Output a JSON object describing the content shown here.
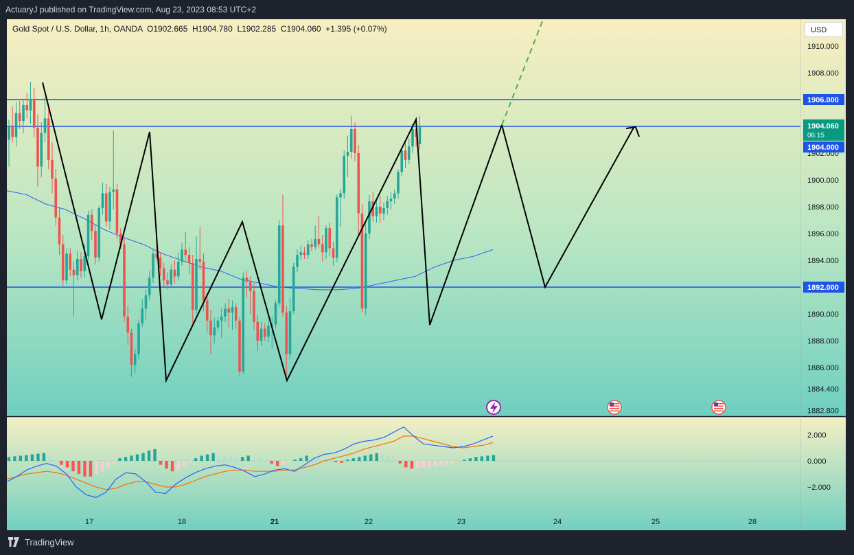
{
  "header": {
    "publisher_line": "ActuaryJ published on TradingView.com, Aug 23, 2023 08:53 UTC+2"
  },
  "legend": {
    "symbol": "Gold Spot / U.S. Dollar, 1h, OANDA",
    "ohlc": "O1902.665  H1904.780  L1902.285  C1904.060  +1.395 (+0.07%)"
  },
  "currency_button": "USD",
  "footer": {
    "brand": "TradingView"
  },
  "colors": {
    "up": "#26a69a",
    "down": "#ef5350",
    "level_line": "#1e53e5",
    "ma_line": "#2962ff",
    "signal_line": "#ff6d00",
    "projection_dashed": "#4caf50",
    "bg_top": "#f8eec0",
    "bg_bottom": "#6fcfc0"
  },
  "icons": {
    "event_flash": "lightning-icon",
    "us_flag_1": "us-flag-icon",
    "us_flag_2": "us-flag-icon"
  },
  "chart_data": {
    "type": "candlestick",
    "price_axis": {
      "ticks": [
        "1910.000",
        "1908.000",
        "1902.000",
        "1900.000",
        "1898.000",
        "1896.000",
        "1894.000",
        "1890.000",
        "1888.000",
        "1886.000",
        "1884.400",
        "1882.800"
      ],
      "tick_values": [
        1910,
        1908,
        1902,
        1900,
        1898,
        1896,
        1894,
        1890,
        1888,
        1886,
        1884.4,
        1882.8
      ]
    },
    "price_labels": [
      {
        "text": "1906.000",
        "value": 1906,
        "style": "level"
      },
      {
        "text": "1904.060",
        "value": 1904.06,
        "style": "last",
        "sub": "06:15"
      },
      {
        "text": "1904.000",
        "value": 1904,
        "style": "level"
      },
      {
        "text": "1892.000",
        "value": 1892,
        "style": "level"
      }
    ],
    "horizontal_levels": [
      1906,
      1904,
      1892
    ],
    "time_axis": {
      "labels": [
        "17",
        "18",
        "21",
        "22",
        "23",
        "24",
        "25",
        "28"
      ],
      "bold": [
        "21"
      ]
    },
    "candles": [
      {
        "o": 1903.0,
        "h": 1904.5,
        "l": 1901.0,
        "c": 1904.0
      },
      {
        "o": 1904.0,
        "h": 1905.5,
        "l": 1902.8,
        "c": 1903.2
      },
      {
        "o": 1903.2,
        "h": 1905.8,
        "l": 1902.5,
        "c": 1905.0
      },
      {
        "o": 1905.0,
        "h": 1905.9,
        "l": 1903.8,
        "c": 1904.4
      },
      {
        "o": 1904.4,
        "h": 1906.0,
        "l": 1903.5,
        "c": 1905.6
      },
      {
        "o": 1905.6,
        "h": 1906.5,
        "l": 1904.6,
        "c": 1905.2
      },
      {
        "o": 1905.2,
        "h": 1907.3,
        "l": 1904.2,
        "c": 1906.0
      },
      {
        "o": 1906.0,
        "h": 1906.9,
        "l": 1903.2,
        "c": 1903.9
      },
      {
        "o": 1903.9,
        "h": 1904.9,
        "l": 1899.5,
        "c": 1901.0
      },
      {
        "o": 1901.0,
        "h": 1904.3,
        "l": 1900.2,
        "c": 1903.5
      },
      {
        "o": 1903.5,
        "h": 1906.2,
        "l": 1902.8,
        "c": 1904.6
      },
      {
        "o": 1904.6,
        "h": 1905.5,
        "l": 1900.8,
        "c": 1901.5
      },
      {
        "o": 1901.5,
        "h": 1902.8,
        "l": 1899.0,
        "c": 1900.1
      },
      {
        "o": 1900.1,
        "h": 1900.8,
        "l": 1896.6,
        "c": 1897.2
      },
      {
        "o": 1897.2,
        "h": 1897.9,
        "l": 1894.4,
        "c": 1895.2
      },
      {
        "o": 1895.2,
        "h": 1895.9,
        "l": 1892.1,
        "c": 1892.5
      },
      {
        "o": 1892.5,
        "h": 1894.9,
        "l": 1892.2,
        "c": 1894.5
      },
      {
        "o": 1894.5,
        "h": 1894.9,
        "l": 1892.8,
        "c": 1893.3
      },
      {
        "o": 1893.3,
        "h": 1893.9,
        "l": 1889.8,
        "c": 1892.9
      },
      {
        "o": 1892.9,
        "h": 1894.7,
        "l": 1892.5,
        "c": 1894.1
      },
      {
        "o": 1894.1,
        "h": 1894.6,
        "l": 1892.7,
        "c": 1893.2
      },
      {
        "o": 1893.2,
        "h": 1895.2,
        "l": 1892.7,
        "c": 1894.3
      },
      {
        "o": 1894.3,
        "h": 1897.7,
        "l": 1894.0,
        "c": 1897.4
      },
      {
        "o": 1897.4,
        "h": 1897.8,
        "l": 1895.5,
        "c": 1896.2
      },
      {
        "o": 1896.2,
        "h": 1896.7,
        "l": 1893.7,
        "c": 1894.2
      },
      {
        "o": 1894.2,
        "h": 1898.1,
        "l": 1893.9,
        "c": 1897.9
      },
      {
        "o": 1897.9,
        "h": 1899.8,
        "l": 1897.4,
        "c": 1899.0
      },
      {
        "o": 1899.0,
        "h": 1899.7,
        "l": 1896.5,
        "c": 1896.9
      },
      {
        "o": 1896.9,
        "h": 1899.5,
        "l": 1896.3,
        "c": 1899.1
      },
      {
        "o": 1899.1,
        "h": 1903.7,
        "l": 1897.8,
        "c": 1899.3
      },
      {
        "o": 1899.3,
        "h": 1899.7,
        "l": 1895.6,
        "c": 1896.0
      },
      {
        "o": 1896.0,
        "h": 1896.4,
        "l": 1894.8,
        "c": 1895.2
      },
      {
        "o": 1895.2,
        "h": 1895.7,
        "l": 1889.4,
        "c": 1889.8
      },
      {
        "o": 1889.8,
        "h": 1890.6,
        "l": 1887.7,
        "c": 1888.6
      },
      {
        "o": 1888.6,
        "h": 1888.9,
        "l": 1885.3,
        "c": 1886.2
      },
      {
        "o": 1886.2,
        "h": 1887.4,
        "l": 1885.6,
        "c": 1887.0
      },
      {
        "o": 1887.0,
        "h": 1889.6,
        "l": 1886.6,
        "c": 1889.3
      },
      {
        "o": 1889.3,
        "h": 1891.1,
        "l": 1889.0,
        "c": 1890.4
      },
      {
        "o": 1890.4,
        "h": 1891.8,
        "l": 1889.6,
        "c": 1891.4
      },
      {
        "o": 1891.4,
        "h": 1893.2,
        "l": 1891.0,
        "c": 1892.7
      },
      {
        "o": 1892.7,
        "h": 1894.8,
        "l": 1892.3,
        "c": 1894.5
      },
      {
        "o": 1894.5,
        "h": 1895.9,
        "l": 1894.0,
        "c": 1894.2
      },
      {
        "o": 1894.2,
        "h": 1894.6,
        "l": 1892.8,
        "c": 1893.4
      },
      {
        "o": 1893.4,
        "h": 1893.8,
        "l": 1892.0,
        "c": 1892.5
      },
      {
        "o": 1892.5,
        "h": 1893.1,
        "l": 1891.8,
        "c": 1892.2
      },
      {
        "o": 1892.2,
        "h": 1893.7,
        "l": 1891.9,
        "c": 1893.3
      },
      {
        "o": 1893.3,
        "h": 1894.0,
        "l": 1892.3,
        "c": 1892.8
      },
      {
        "o": 1892.8,
        "h": 1894.6,
        "l": 1892.5,
        "c": 1893.9
      },
      {
        "o": 1893.9,
        "h": 1895.3,
        "l": 1893.6,
        "c": 1894.8
      },
      {
        "o": 1894.8,
        "h": 1896.1,
        "l": 1894.0,
        "c": 1894.4
      },
      {
        "o": 1894.4,
        "h": 1895.0,
        "l": 1893.0,
        "c": 1893.8
      },
      {
        "o": 1893.8,
        "h": 1894.4,
        "l": 1889.3,
        "c": 1890.3
      },
      {
        "o": 1890.3,
        "h": 1895.8,
        "l": 1890.0,
        "c": 1894.1
      },
      {
        "o": 1894.1,
        "h": 1896.5,
        "l": 1893.3,
        "c": 1893.9
      },
      {
        "o": 1893.9,
        "h": 1894.5,
        "l": 1890.2,
        "c": 1891.0
      },
      {
        "o": 1891.0,
        "h": 1891.6,
        "l": 1888.6,
        "c": 1889.5
      },
      {
        "o": 1889.5,
        "h": 1890.3,
        "l": 1887.0,
        "c": 1888.4
      },
      {
        "o": 1888.4,
        "h": 1889.7,
        "l": 1887.8,
        "c": 1889.0
      },
      {
        "o": 1889.0,
        "h": 1889.8,
        "l": 1888.7,
        "c": 1889.5
      },
      {
        "o": 1889.5,
        "h": 1890.4,
        "l": 1888.2,
        "c": 1889.8
      },
      {
        "o": 1889.8,
        "h": 1890.8,
        "l": 1889.4,
        "c": 1890.4
      },
      {
        "o": 1890.4,
        "h": 1891.1,
        "l": 1889.0,
        "c": 1890.1
      },
      {
        "o": 1890.1,
        "h": 1891.0,
        "l": 1888.8,
        "c": 1890.5
      },
      {
        "o": 1890.5,
        "h": 1890.8,
        "l": 1888.9,
        "c": 1889.5
      },
      {
        "o": 1889.5,
        "h": 1889.8,
        "l": 1885.3,
        "c": 1885.7
      },
      {
        "o": 1885.7,
        "h": 1893.1,
        "l": 1885.5,
        "c": 1892.7
      },
      {
        "o": 1892.7,
        "h": 1893.2,
        "l": 1891.2,
        "c": 1892.4
      },
      {
        "o": 1892.4,
        "h": 1892.8,
        "l": 1890.0,
        "c": 1891.7
      },
      {
        "o": 1891.7,
        "h": 1892.3,
        "l": 1888.8,
        "c": 1889.4
      },
      {
        "o": 1889.4,
        "h": 1889.9,
        "l": 1887.2,
        "c": 1888.0
      },
      {
        "o": 1888.0,
        "h": 1889.4,
        "l": 1887.6,
        "c": 1888.9
      },
      {
        "o": 1888.9,
        "h": 1889.3,
        "l": 1888.0,
        "c": 1888.3
      },
      {
        "o": 1888.3,
        "h": 1889.6,
        "l": 1887.9,
        "c": 1889.1
      },
      {
        "o": 1889.1,
        "h": 1889.8,
        "l": 1887.4,
        "c": 1889.2
      },
      {
        "o": 1889.2,
        "h": 1891.0,
        "l": 1888.9,
        "c": 1890.8
      },
      {
        "o": 1890.8,
        "h": 1897.0,
        "l": 1890.5,
        "c": 1896.6
      },
      {
        "o": 1896.6,
        "h": 1898.9,
        "l": 1889.8,
        "c": 1890.1
      },
      {
        "o": 1890.1,
        "h": 1890.6,
        "l": 1885.4,
        "c": 1887.0
      },
      {
        "o": 1887.0,
        "h": 1891.2,
        "l": 1886.6,
        "c": 1890.2
      },
      {
        "o": 1890.2,
        "h": 1893.8,
        "l": 1890.0,
        "c": 1893.5
      },
      {
        "o": 1893.5,
        "h": 1894.8,
        "l": 1893.1,
        "c": 1894.4
      },
      {
        "o": 1894.4,
        "h": 1895.1,
        "l": 1894.0,
        "c": 1894.6
      },
      {
        "o": 1894.6,
        "h": 1895.0,
        "l": 1894.1,
        "c": 1894.4
      },
      {
        "o": 1894.4,
        "h": 1895.5,
        "l": 1894.1,
        "c": 1895.2
      },
      {
        "o": 1895.2,
        "h": 1895.6,
        "l": 1894.7,
        "c": 1895.0
      },
      {
        "o": 1895.0,
        "h": 1896.6,
        "l": 1894.8,
        "c": 1895.6
      },
      {
        "o": 1895.6,
        "h": 1897.3,
        "l": 1894.9,
        "c": 1895.2
      },
      {
        "o": 1895.2,
        "h": 1895.9,
        "l": 1893.9,
        "c": 1894.6
      },
      {
        "o": 1894.6,
        "h": 1896.6,
        "l": 1894.1,
        "c": 1896.4
      },
      {
        "o": 1896.4,
        "h": 1896.8,
        "l": 1894.3,
        "c": 1894.9
      },
      {
        "o": 1894.9,
        "h": 1895.4,
        "l": 1893.6,
        "c": 1894.2
      },
      {
        "o": 1894.2,
        "h": 1898.9,
        "l": 1893.9,
        "c": 1898.7
      },
      {
        "o": 1898.7,
        "h": 1899.3,
        "l": 1896.5,
        "c": 1899.0
      },
      {
        "o": 1899.0,
        "h": 1902.2,
        "l": 1898.6,
        "c": 1901.8
      },
      {
        "o": 1901.8,
        "h": 1903.3,
        "l": 1900.2,
        "c": 1902.1
      },
      {
        "o": 1902.1,
        "h": 1904.8,
        "l": 1901.6,
        "c": 1903.8
      },
      {
        "o": 1903.8,
        "h": 1904.3,
        "l": 1901.4,
        "c": 1902.0
      },
      {
        "o": 1902.0,
        "h": 1902.6,
        "l": 1895.9,
        "c": 1897.5
      },
      {
        "o": 1897.5,
        "h": 1898.2,
        "l": 1890.1,
        "c": 1890.4
      },
      {
        "o": 1890.4,
        "h": 1896.9,
        "l": 1889.9,
        "c": 1896.0
      },
      {
        "o": 1896.0,
        "h": 1898.9,
        "l": 1895.6,
        "c": 1898.4
      },
      {
        "o": 1898.4,
        "h": 1899.1,
        "l": 1896.9,
        "c": 1897.3
      },
      {
        "o": 1897.3,
        "h": 1898.6,
        "l": 1896.8,
        "c": 1898.0
      },
      {
        "o": 1898.0,
        "h": 1898.8,
        "l": 1896.8,
        "c": 1897.5
      },
      {
        "o": 1897.5,
        "h": 1898.3,
        "l": 1897.0,
        "c": 1897.9
      },
      {
        "o": 1897.9,
        "h": 1898.8,
        "l": 1897.4,
        "c": 1898.4
      },
      {
        "o": 1898.4,
        "h": 1899.1,
        "l": 1897.8,
        "c": 1898.6
      },
      {
        "o": 1898.6,
        "h": 1899.3,
        "l": 1898.2,
        "c": 1899.0
      },
      {
        "o": 1899.0,
        "h": 1900.8,
        "l": 1898.6,
        "c": 1900.6
      },
      {
        "o": 1900.6,
        "h": 1902.4,
        "l": 1900.3,
        "c": 1902.2
      },
      {
        "o": 1902.2,
        "h": 1902.9,
        "l": 1900.9,
        "c": 1901.5
      },
      {
        "o": 1901.5,
        "h": 1903.1,
        "l": 1901.2,
        "c": 1902.5
      },
      {
        "o": 1902.5,
        "h": 1904.2,
        "l": 1902.0,
        "c": 1903.8
      },
      {
        "o": 1903.8,
        "h": 1904.7,
        "l": 1902.5,
        "c": 1903.2
      },
      {
        "o": 1902.665,
        "h": 1904.78,
        "l": 1902.285,
        "c": 1904.06
      }
    ],
    "moving_average": [
      1899.2,
      1898.9,
      1898.2,
      1897.8,
      1897.1,
      1896.3,
      1895.7,
      1895.2,
      1894.5,
      1894.0,
      1893.5,
      1893.2,
      1892.6,
      1892.3,
      1892.0,
      1891.9,
      1891.8,
      1891.8,
      1891.9,
      1892.2,
      1892.5,
      1892.8,
      1893.5,
      1894.0,
      1894.3,
      1894.8
    ],
    "projection_zigzag": [
      [
        1904.06,
        "now"
      ],
      [
        1892.0,
        "low"
      ],
      [
        1904.0,
        "high"
      ]
    ],
    "macd_panel": {
      "axis_labels": [
        "2.000",
        "0.000",
        "−2.000"
      ],
      "axis_values": [
        2,
        0,
        -2
      ],
      "histogram": [
        0.3,
        0.35,
        0.4,
        0.45,
        0.5,
        0.55,
        0.6,
        0.2,
        0.0,
        -0.3,
        -0.5,
        -0.8,
        -1.0,
        -1.2,
        -1.2,
        -1.0,
        -0.8,
        -0.5,
        -0.2,
        0.2,
        0.3,
        0.4,
        0.5,
        0.6,
        0.8,
        0.9,
        -0.3,
        -0.6,
        -0.8,
        -0.7,
        -0.4,
        -0.1,
        0.2,
        0.4,
        0.5,
        0.6,
        0.5,
        0.4,
        0.3,
        0.25,
        0.3,
        0.4,
        0.3,
        0.2,
        0.1,
        -0.2,
        -0.4,
        -0.3,
        -0.1,
        0.1,
        0.2,
        0.4,
        0.3,
        0.2,
        0.15,
        0.1,
        -0.1,
        -0.15,
        0.1,
        0.2,
        0.3,
        0.4,
        0.5,
        0.6,
        0.5,
        0.4,
        0.3,
        -0.2,
        -0.5,
        -0.6,
        -0.55,
        -0.5,
        -0.45,
        -0.4,
        -0.35,
        -0.3,
        -0.2,
        -0.1,
        0.1,
        0.2,
        0.3,
        0.35,
        0.4,
        0.45
      ],
      "macd": [
        -1.6,
        -1.2,
        -0.7,
        -0.4,
        -0.2,
        -0.4,
        -1.0,
        -2.0,
        -2.6,
        -2.8,
        -2.4,
        -1.4,
        -0.9,
        -1.0,
        -1.6,
        -2.4,
        -2.5,
        -1.8,
        -1.3,
        -0.9,
        -0.6,
        -0.4,
        -0.3,
        -0.5,
        -0.8,
        -1.2,
        -1.0,
        -0.7,
        -0.6,
        -0.8,
        -0.3,
        0.2,
        0.5,
        0.6,
        0.9,
        1.3,
        1.5,
        1.6,
        1.8,
        2.2,
        2.6,
        1.9,
        1.3,
        1.2,
        1.1,
        1.0,
        1.1,
        1.3,
        1.6,
        1.9
      ],
      "signal": [
        -1.4,
        -1.2,
        -1.0,
        -0.9,
        -0.8,
        -0.9,
        -1.1,
        -1.4,
        -1.7,
        -2.0,
        -2.2,
        -2.1,
        -1.8,
        -1.6,
        -1.6,
        -1.8,
        -2.0,
        -2.0,
        -1.8,
        -1.5,
        -1.2,
        -1.0,
        -0.8,
        -0.7,
        -0.7,
        -0.8,
        -0.8,
        -0.8,
        -0.7,
        -0.7,
        -0.5,
        -0.3,
        0.0,
        0.2,
        0.4,
        0.6,
        0.9,
        1.1,
        1.3,
        1.5,
        1.9,
        1.9,
        1.7,
        1.5,
        1.3,
        1.1,
        1.0,
        1.1,
        1.2,
        1.4
      ]
    }
  }
}
